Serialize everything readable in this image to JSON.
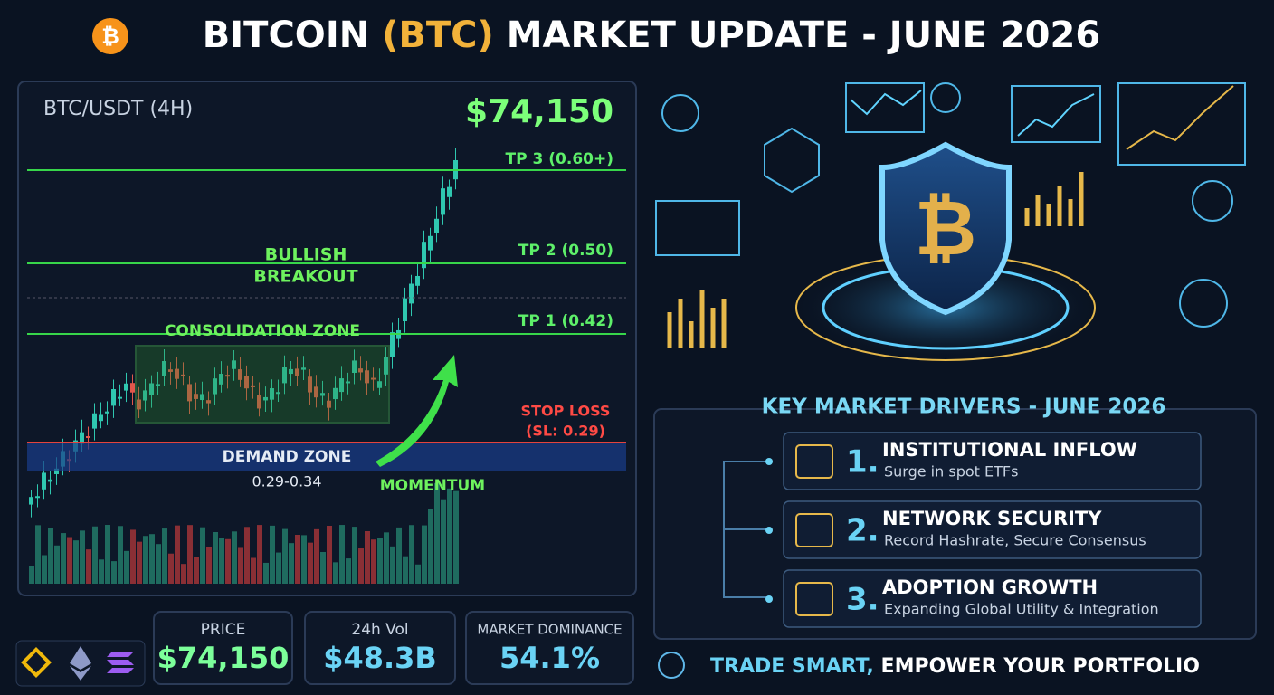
{
  "header": {
    "title_parts": [
      "BITCOIN",
      "(BTC)",
      "MARKET UPDATE - JUNE 2026"
    ]
  },
  "chart_panel": {
    "pair": "BTC/USDT (4H)",
    "price": "$74,150",
    "levels": [
      "TP 3 (0.60+)",
      "TP 2 (0.50)",
      "TP 1 (0.42)"
    ],
    "stop_loss": "STOP LOSS",
    "stop_loss_value": "(SL: 0.29)",
    "breakout": [
      "BULLISH",
      "BREAKOUT"
    ],
    "consolidation": "CONSOLIDATION ZONE",
    "demand_zone": "DEMAND ZONE",
    "demand_range": "0.29-0.34",
    "momentum": "MOMENTUM"
  },
  "stats": [
    {
      "label": "PRICE",
      "value": "$74,150"
    },
    {
      "label": "24h Vol",
      "value": "$48.3B"
    },
    {
      "label": "MARKET DOMINANCE",
      "value": "54.1%"
    }
  ],
  "drivers": {
    "title": "KEY MARKET DRIVERS - JUNE 2026",
    "items": [
      {
        "number": "1.",
        "title": "INSTITUTIONAL INFLOW",
        "subtitle": "Surge in spot ETFs"
      },
      {
        "number": "2.",
        "title": "NETWORK SECURITY",
        "subtitle": "Record Hashrate, Secure Consensus"
      },
      {
        "number": "3.",
        "title": "ADOPTION GROWTH",
        "subtitle": "Expanding Global Utility & Integration"
      }
    ]
  },
  "footer": {
    "tagline_parts": [
      "TRADE SMART,",
      "EMPOWER YOUR PORTFOLIO"
    ]
  }
}
